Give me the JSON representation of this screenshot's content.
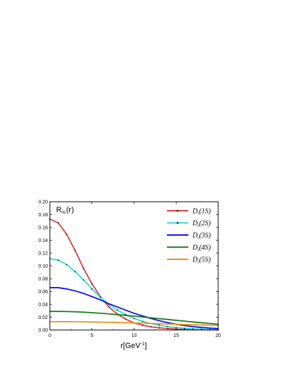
{
  "chart_data": {
    "type": "line",
    "panel_label": "R",
    "panel_label_sub": "nL",
    "panel_label_tail": "(r)",
    "xlabel": "r[GeV",
    "xlabel_sup": "-1",
    "xlabel_tail": "]",
    "xlim": [
      0,
      20
    ],
    "ylim": [
      0,
      0.2
    ],
    "x_ticks": [
      "0",
      "5",
      "10",
      "15",
      "20"
    ],
    "y_ticks": [
      "0.00",
      "0.02",
      "0.04",
      "0.06",
      "0.08",
      "0.10",
      "0.12",
      "0.14",
      "0.16",
      "0.18",
      "0.20"
    ],
    "x_tick_values": [
      0,
      5,
      10,
      15,
      20
    ],
    "y_tick_values": [
      0,
      0.02,
      0.04,
      0.06,
      0.08,
      0.1,
      0.12,
      0.14,
      0.16,
      0.18,
      0.2
    ],
    "legend_position": "top-right",
    "series": [
      {
        "name": "D(1S)",
        "label_main": "D",
        "label_sub": "s",
        "label_tail": "(1S)",
        "color": "#e03c3c",
        "marker": "#111111",
        "x": [
          0,
          1,
          2,
          3,
          4,
          5,
          6,
          7,
          8,
          9,
          10,
          11,
          12,
          13,
          14,
          15,
          16,
          17,
          18,
          19,
          20
        ],
        "y": [
          0.173,
          0.167,
          0.149,
          0.124,
          0.096,
          0.072,
          0.052,
          0.036,
          0.025,
          0.017,
          0.011,
          0.0075,
          0.005,
          0.0033,
          0.0022,
          0.0014,
          0.0009,
          0.0006,
          0.0004,
          0.0003,
          0.0002
        ]
      },
      {
        "name": "D(2S)",
        "label_main": "D",
        "label_sub": "s",
        "label_tail": "(2S)",
        "color": "#22e0e0",
        "marker": "#111111",
        "x": [
          0,
          1,
          2,
          3,
          4,
          5,
          6,
          7,
          8,
          9,
          10,
          11,
          12,
          13,
          14,
          15,
          16,
          17,
          18,
          19,
          20
        ],
        "y": [
          0.111,
          0.109,
          0.102,
          0.091,
          0.078,
          0.064,
          0.051,
          0.04,
          0.031,
          0.024,
          0.018,
          0.0135,
          0.01,
          0.0073,
          0.0053,
          0.0038,
          0.0027,
          0.0019,
          0.0013,
          0.0009,
          0.0006
        ]
      },
      {
        "name": "D(3S)",
        "label_main": "D",
        "label_sub": "s",
        "label_tail": "(3S)",
        "color": "#1010e8",
        "marker": null,
        "x": [
          0,
          1,
          2,
          3,
          4,
          5,
          6,
          7,
          8,
          9,
          10,
          11,
          12,
          13,
          14,
          15,
          16,
          17,
          18,
          19,
          20
        ],
        "y": [
          0.066,
          0.066,
          0.064,
          0.061,
          0.057,
          0.052,
          0.047,
          0.041,
          0.036,
          0.031,
          0.026,
          0.022,
          0.018,
          0.0145,
          0.0115,
          0.009,
          0.007,
          0.0053,
          0.004,
          0.003,
          0.0022
        ]
      },
      {
        "name": "D(4S)",
        "label_main": "D",
        "label_sub": "s",
        "label_tail": "(4S)",
        "color": "#1a7a1a",
        "marker": null,
        "x": [
          0,
          1,
          2,
          3,
          4,
          5,
          6,
          7,
          8,
          9,
          10,
          11,
          12,
          13,
          14,
          15,
          16,
          17,
          18,
          19,
          20
        ],
        "y": [
          0.029,
          0.029,
          0.0288,
          0.0284,
          0.0278,
          0.027,
          0.0261,
          0.0251,
          0.024,
          0.0228,
          0.0216,
          0.0203,
          0.019,
          0.0177,
          0.0164,
          0.0151,
          0.0138,
          0.0125,
          0.0113,
          0.0101,
          0.009
        ]
      },
      {
        "name": "D(5S)",
        "label_main": "D",
        "label_sub": "s",
        "label_tail": "(5S)",
        "color": "#f0901a",
        "marker": "#f0901a",
        "x": [
          0,
          1,
          2,
          3,
          4,
          5,
          6,
          7,
          8,
          9,
          10,
          11,
          12,
          13,
          14,
          15,
          16,
          17,
          18,
          19,
          20
        ],
        "y": [
          0.013,
          0.013,
          0.0129,
          0.0128,
          0.0127,
          0.0125,
          0.0123,
          0.012,
          0.0117,
          0.0114,
          0.011,
          0.0106,
          0.0102,
          0.0098,
          0.0094,
          0.009,
          0.0086,
          0.0082,
          0.0078,
          0.0074,
          0.007
        ]
      }
    ]
  }
}
